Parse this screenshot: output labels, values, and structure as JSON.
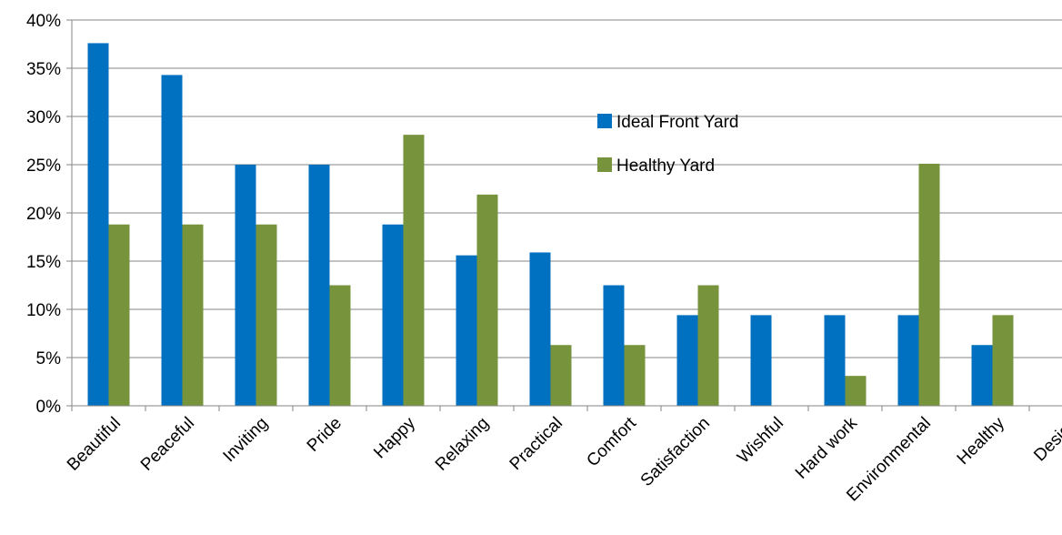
{
  "chart_data": {
    "type": "bar",
    "title": "",
    "xlabel": "",
    "ylabel": "",
    "categories": [
      "Beautiful",
      "Peaceful",
      "Inviting",
      "Pride",
      "Happy",
      "Relaxing",
      "Practical",
      "Comfort",
      "Satisfaction",
      "Wishful",
      "Hard work",
      "Environmental",
      "Healthy",
      "Design"
    ],
    "series": [
      {
        "name": "Ideal Front Yard",
        "color": "#0070c0",
        "values": [
          37.6,
          34.3,
          25.0,
          25.0,
          18.8,
          15.6,
          15.9,
          12.5,
          9.4,
          9.4,
          9.4,
          9.4,
          6.3,
          0
        ]
      },
      {
        "name": "Healthy Yard",
        "color": "#77933c",
        "values": [
          18.8,
          18.8,
          18.8,
          12.5,
          28.1,
          21.9,
          6.3,
          6.3,
          12.5,
          0,
          3.1,
          25.1,
          9.4,
          0
        ]
      }
    ],
    "ylim": [
      0,
      40
    ],
    "yticks": [
      "0%",
      "5%",
      "10%",
      "15%",
      "20%",
      "25%",
      "30%",
      "35%",
      "40%"
    ],
    "ytick_values": [
      0,
      5,
      10,
      15,
      20,
      25,
      30,
      35,
      40
    ],
    "grid": true,
    "legend_position": "upper-center-right"
  }
}
